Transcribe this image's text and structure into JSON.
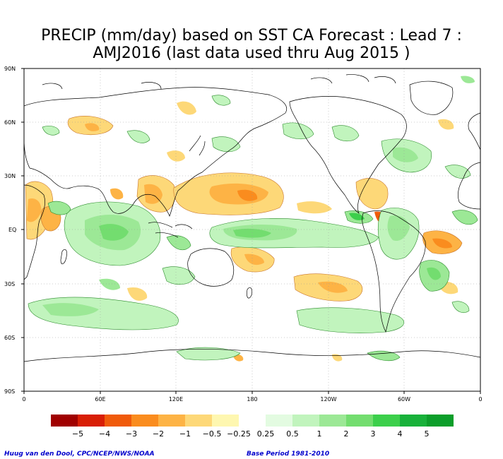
{
  "title": {
    "line1": "PRECIP (mm/day) based on SST CA Forecast : Lead 7 :",
    "line2": "AMJ2016 (last data used thru Aug 2015 )"
  },
  "axes": {
    "lat_ticks": [
      "90N",
      "60N",
      "30N",
      "EQ",
      "30S",
      "60S",
      "90S"
    ],
    "lon_ticks": [
      "0",
      "60E",
      "120E",
      "180",
      "120W",
      "60W",
      "0"
    ]
  },
  "colorbar": {
    "labels": [
      "−5",
      "−4",
      "−3",
      "−2",
      "−1",
      "−0.5",
      "−0.25",
      "0.25",
      "0.5",
      "1",
      "2",
      "3",
      "4",
      "5"
    ],
    "colors": [
      "#a00000",
      "#d81e05",
      "#f05a0a",
      "#fa8c1e",
      "#fdb345",
      "#fdd878",
      "#fef7b0",
      "#ffffff",
      "#e3fbe1",
      "#c1f4bd",
      "#9ce896",
      "#73dd6f",
      "#3ccf4b",
      "#18b13a",
      "#0c9e2a"
    ]
  },
  "footer": {
    "credit": "Huug van den Dool, CPC/NCEP/NWS/NOAA",
    "base_period": "Base Period 1981-2010"
  }
}
